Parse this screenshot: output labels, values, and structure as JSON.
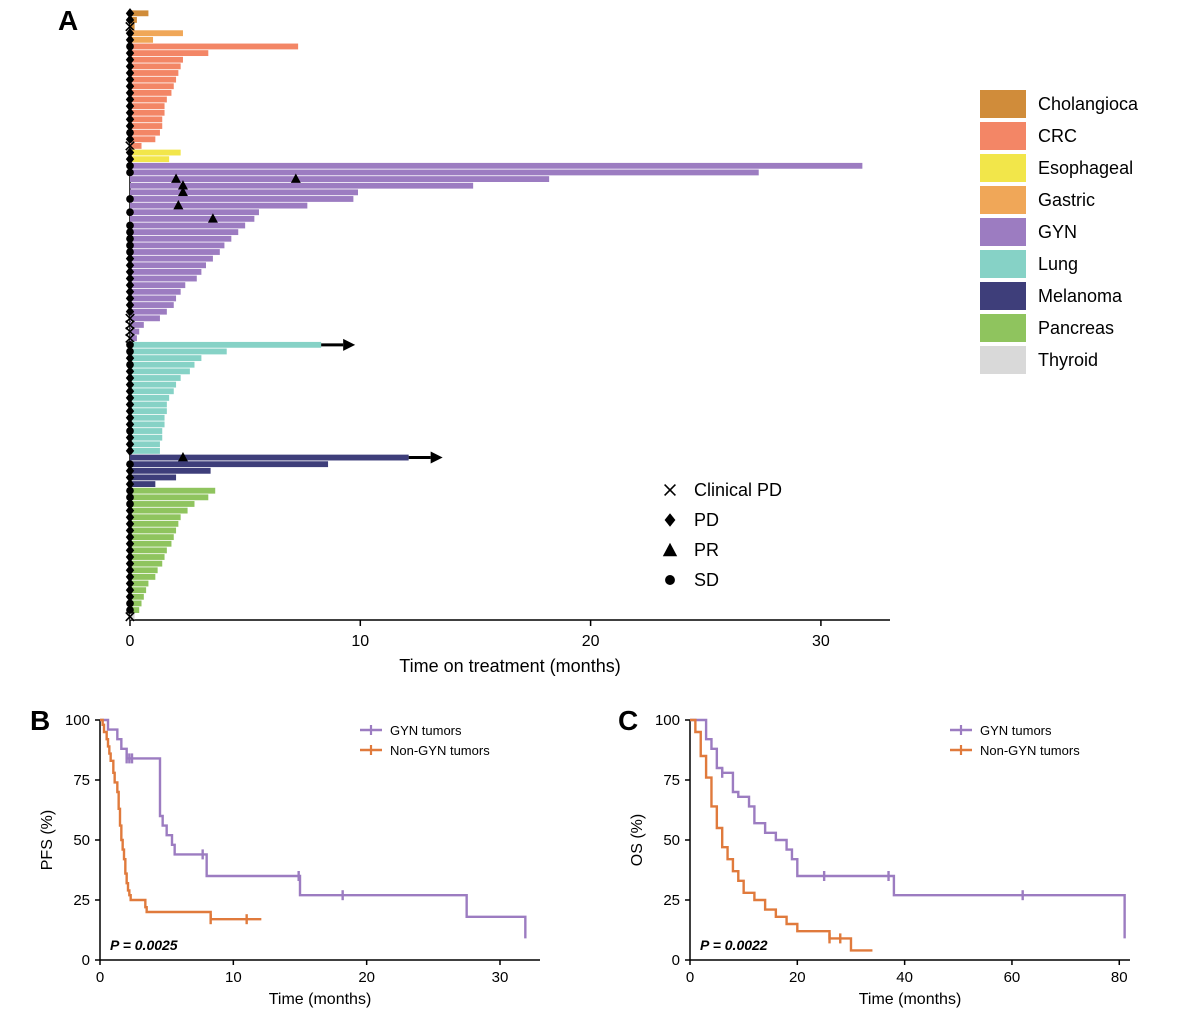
{
  "palette": {
    "Cholangioca": "#d08c3a",
    "CRC": "#f38666",
    "Esophageal": "#f2e64a",
    "Gastric": "#f0a758",
    "GYN": "#9c7cc1",
    "Lung": "#86d2c6",
    "Melanoma": "#3e3e7a",
    "Pancreas": "#8fc45e",
    "Thyroid": "#d9d9d9"
  },
  "panelA": {
    "label": "A",
    "xlabel": "Time on treatment (months)",
    "xlim": [
      0,
      33
    ],
    "xticks": [
      0,
      10,
      20,
      30
    ],
    "bar_gap": 0.12,
    "label_fontsize": 18,
    "tick_fontsize": 16,
    "panel_label_fontsize": 28,
    "axis_color": "#000000",
    "bars": [
      {
        "v": 0.8,
        "g": "Cholangioca",
        "m": "pd"
      },
      {
        "v": 0.3,
        "g": "Cholangioca",
        "m": "pd"
      },
      {
        "v": 0.2,
        "g": "Cholangioca",
        "m": "x"
      },
      {
        "v": 2.3,
        "g": "Gastric",
        "m": "pd"
      },
      {
        "v": 1.0,
        "g": "Gastric",
        "m": "pd"
      },
      {
        "v": 7.3,
        "g": "CRC",
        "m": "sd"
      },
      {
        "v": 3.4,
        "g": "CRC",
        "m": "pd"
      },
      {
        "v": 2.3,
        "g": "CRC",
        "m": "pd"
      },
      {
        "v": 2.2,
        "g": "CRC",
        "m": "pd"
      },
      {
        "v": 2.1,
        "g": "CRC",
        "m": "pd"
      },
      {
        "v": 2.0,
        "g": "CRC",
        "m": "pd"
      },
      {
        "v": 1.9,
        "g": "CRC",
        "m": "pd"
      },
      {
        "v": 1.8,
        "g": "CRC",
        "m": "pd"
      },
      {
        "v": 1.6,
        "g": "CRC",
        "m": "pd"
      },
      {
        "v": 1.5,
        "g": "CRC",
        "m": "pd"
      },
      {
        "v": 1.5,
        "g": "CRC",
        "m": "pd"
      },
      {
        "v": 1.4,
        "g": "CRC",
        "m": "pd"
      },
      {
        "v": 1.4,
        "g": "CRC",
        "m": "pd"
      },
      {
        "v": 1.3,
        "g": "CRC",
        "m": "sd"
      },
      {
        "v": 1.1,
        "g": "CRC",
        "m": "pd"
      },
      {
        "v": 0.5,
        "g": "CRC",
        "m": "x"
      },
      {
        "v": 2.2,
        "g": "Esophageal",
        "m": "pd"
      },
      {
        "v": 1.7,
        "g": "Esophageal",
        "m": "pd"
      },
      {
        "v": 31.8,
        "g": "GYN",
        "m": "sd"
      },
      {
        "v": 27.3,
        "g": "GYN",
        "m": "sd"
      },
      {
        "v": 18.2,
        "g": "GYN",
        "m": "pr",
        "pr_at": [
          2.0,
          7.2
        ]
      },
      {
        "v": 14.9,
        "g": "GYN",
        "m": "pr",
        "pr_at": [
          2.3
        ]
      },
      {
        "v": 9.9,
        "g": "GYN",
        "m": "pr",
        "pr_at": [
          2.3
        ]
      },
      {
        "v": 9.7,
        "g": "GYN",
        "m": "sd"
      },
      {
        "v": 7.7,
        "g": "GYN",
        "m": "pr",
        "pr_at": [
          2.1
        ]
      },
      {
        "v": 5.6,
        "g": "GYN",
        "m": "sd"
      },
      {
        "v": 5.4,
        "g": "GYN",
        "m": "pr",
        "pr_at": [
          3.6
        ]
      },
      {
        "v": 5.0,
        "g": "GYN",
        "m": "sd"
      },
      {
        "v": 4.7,
        "g": "GYN",
        "m": "sd"
      },
      {
        "v": 4.4,
        "g": "GYN",
        "m": "sd"
      },
      {
        "v": 4.1,
        "g": "GYN",
        "m": "sd"
      },
      {
        "v": 3.9,
        "g": "GYN",
        "m": "sd"
      },
      {
        "v": 3.6,
        "g": "GYN",
        "m": "pd"
      },
      {
        "v": 3.3,
        "g": "GYN",
        "m": "pd"
      },
      {
        "v": 3.1,
        "g": "GYN",
        "m": "pd"
      },
      {
        "v": 2.9,
        "g": "GYN",
        "m": "pd"
      },
      {
        "v": 2.4,
        "g": "GYN",
        "m": "pd"
      },
      {
        "v": 2.2,
        "g": "GYN",
        "m": "pd"
      },
      {
        "v": 2.0,
        "g": "GYN",
        "m": "pd"
      },
      {
        "v": 1.9,
        "g": "GYN",
        "m": "pd"
      },
      {
        "v": 1.6,
        "g": "GYN",
        "m": "pd"
      },
      {
        "v": 1.3,
        "g": "GYN",
        "m": "x"
      },
      {
        "v": 0.6,
        "g": "GYN",
        "m": "x"
      },
      {
        "v": 0.4,
        "g": "GYN",
        "m": "x"
      },
      {
        "v": 0.3,
        "g": "GYN",
        "m": "x"
      },
      {
        "v": 8.3,
        "g": "Lung",
        "m": "sd",
        "arrow": true
      },
      {
        "v": 4.2,
        "g": "Lung",
        "m": "sd"
      },
      {
        "v": 3.1,
        "g": "Lung",
        "m": "pd"
      },
      {
        "v": 2.8,
        "g": "Lung",
        "m": "sd"
      },
      {
        "v": 2.6,
        "g": "Lung",
        "m": "pd"
      },
      {
        "v": 2.2,
        "g": "Lung",
        "m": "pd"
      },
      {
        "v": 2.0,
        "g": "Lung",
        "m": "pd"
      },
      {
        "v": 1.9,
        "g": "Lung",
        "m": "pd"
      },
      {
        "v": 1.7,
        "g": "Lung",
        "m": "pd"
      },
      {
        "v": 1.6,
        "g": "Lung",
        "m": "pd"
      },
      {
        "v": 1.6,
        "g": "Lung",
        "m": "pd"
      },
      {
        "v": 1.5,
        "g": "Lung",
        "m": "pd"
      },
      {
        "v": 1.5,
        "g": "Lung",
        "m": "pd"
      },
      {
        "v": 1.4,
        "g": "Lung",
        "m": "sd"
      },
      {
        "v": 1.4,
        "g": "Lung",
        "m": "pd"
      },
      {
        "v": 1.3,
        "g": "Lung",
        "m": "pd"
      },
      {
        "v": 1.3,
        "g": "Lung",
        "m": "pd"
      },
      {
        "v": 12.1,
        "g": "Melanoma",
        "m": "pr",
        "pr_at": [
          2.3
        ],
        "arrow": true
      },
      {
        "v": 8.6,
        "g": "Melanoma",
        "m": "sd"
      },
      {
        "v": 3.5,
        "g": "Melanoma",
        "m": "pd"
      },
      {
        "v": 2.0,
        "g": "Melanoma",
        "m": "pd"
      },
      {
        "v": 1.1,
        "g": "Melanoma",
        "m": "pd"
      },
      {
        "v": 3.7,
        "g": "Pancreas",
        "m": "sd"
      },
      {
        "v": 3.4,
        "g": "Pancreas",
        "m": "sd"
      },
      {
        "v": 2.8,
        "g": "Pancreas",
        "m": "sd"
      },
      {
        "v": 2.5,
        "g": "Pancreas",
        "m": "pd"
      },
      {
        "v": 2.2,
        "g": "Pancreas",
        "m": "pd"
      },
      {
        "v": 2.1,
        "g": "Pancreas",
        "m": "pd"
      },
      {
        "v": 2.0,
        "g": "Pancreas",
        "m": "pd"
      },
      {
        "v": 1.9,
        "g": "Pancreas",
        "m": "pd"
      },
      {
        "v": 1.8,
        "g": "Pancreas",
        "m": "pd"
      },
      {
        "v": 1.6,
        "g": "Pancreas",
        "m": "pd"
      },
      {
        "v": 1.5,
        "g": "Pancreas",
        "m": "pd"
      },
      {
        "v": 1.4,
        "g": "Pancreas",
        "m": "pd"
      },
      {
        "v": 1.2,
        "g": "Pancreas",
        "m": "pd"
      },
      {
        "v": 1.1,
        "g": "Pancreas",
        "m": "pd"
      },
      {
        "v": 0.8,
        "g": "Pancreas",
        "m": "pd"
      },
      {
        "v": 0.7,
        "g": "Pancreas",
        "m": "pd"
      },
      {
        "v": 0.6,
        "g": "Pancreas",
        "m": "pd"
      },
      {
        "v": 0.5,
        "g": "Pancreas",
        "m": "sd"
      },
      {
        "v": 0.4,
        "g": "Pancreas",
        "m": "sd"
      },
      {
        "v": 0.2,
        "g": "Thyroid",
        "m": "x"
      }
    ],
    "marker_legend": [
      {
        "key": "x",
        "label": "Clinical PD"
      },
      {
        "key": "pd",
        "label": "PD"
      },
      {
        "key": "pr",
        "label": "PR"
      },
      {
        "key": "sd",
        "label": "SD"
      }
    ],
    "group_legend_title": null,
    "group_order": [
      "Cholangioca",
      "CRC",
      "Esophageal",
      "Gastric",
      "GYN",
      "Lung",
      "Melanoma",
      "Pancreas",
      "Thyroid"
    ]
  },
  "panelB": {
    "label": "B",
    "ylabel": "PFS (%)",
    "xlabel": "Time (months)",
    "xlim": [
      0,
      33
    ],
    "xticks": [
      0,
      10,
      20,
      30
    ],
    "ylim": [
      0,
      100
    ],
    "yticks": [
      0,
      25,
      50,
      75,
      100
    ],
    "p_text": "P = 0.0025",
    "series": [
      {
        "name": "GYN tumors",
        "color": "#9c7cc1",
        "step": [
          [
            0,
            100
          ],
          [
            0.4,
            100
          ],
          [
            0.6,
            96
          ],
          [
            1.3,
            92
          ],
          [
            1.6,
            88
          ],
          [
            2.0,
            84
          ],
          [
            2.0,
            84
          ],
          [
            2.2,
            84
          ],
          [
            2.4,
            84
          ],
          [
            4.5,
            84
          ],
          [
            4.5,
            60
          ],
          [
            4.7,
            56
          ],
          [
            5.0,
            52
          ],
          [
            5.4,
            48
          ],
          [
            5.6,
            44
          ],
          [
            7.7,
            44
          ],
          [
            8.0,
            35
          ],
          [
            9.7,
            35
          ],
          [
            14.9,
            35
          ],
          [
            15.0,
            27
          ],
          [
            18.2,
            27
          ],
          [
            27.3,
            27
          ],
          [
            27.5,
            18
          ],
          [
            31.8,
            18
          ],
          [
            31.9,
            9
          ]
        ],
        "censors": [
          [
            2.0,
            84
          ],
          [
            2.2,
            84
          ],
          [
            2.4,
            84
          ],
          [
            7.7,
            44
          ],
          [
            14.9,
            35
          ],
          [
            18.2,
            27
          ]
        ]
      },
      {
        "name": "Non-GYN tumors",
        "color": "#e07a3c",
        "step": [
          [
            0,
            100
          ],
          [
            0.2,
            98
          ],
          [
            0.3,
            95
          ],
          [
            0.5,
            92
          ],
          [
            0.6,
            89
          ],
          [
            0.7,
            86
          ],
          [
            0.8,
            83
          ],
          [
            1.0,
            78
          ],
          [
            1.1,
            74
          ],
          [
            1.3,
            70
          ],
          [
            1.4,
            63
          ],
          [
            1.5,
            56
          ],
          [
            1.6,
            50
          ],
          [
            1.7,
            46
          ],
          [
            1.8,
            42
          ],
          [
            1.9,
            36
          ],
          [
            2.0,
            32
          ],
          [
            2.1,
            29
          ],
          [
            2.2,
            27
          ],
          [
            2.3,
            25
          ],
          [
            2.5,
            25
          ],
          [
            2.6,
            25
          ],
          [
            2.8,
            25
          ],
          [
            3.1,
            25
          ],
          [
            3.4,
            22
          ],
          [
            3.5,
            20
          ],
          [
            4.2,
            20
          ],
          [
            7.3,
            20
          ],
          [
            8.3,
            17
          ],
          [
            11.0,
            17
          ],
          [
            12.1,
            17
          ]
        ],
        "censors": [
          [
            8.3,
            17
          ],
          [
            11.0,
            17
          ]
        ]
      }
    ]
  },
  "panelC": {
    "label": "C",
    "ylabel": "OS (%)",
    "xlabel": "Time (months)",
    "xlim": [
      0,
      82
    ],
    "xticks": [
      0,
      20,
      40,
      60,
      80
    ],
    "ylim": [
      0,
      100
    ],
    "yticks": [
      0,
      25,
      50,
      75,
      100
    ],
    "p_text": "P = 0.0022",
    "series": [
      {
        "name": "GYN tumors",
        "color": "#9c7cc1",
        "step": [
          [
            0,
            100
          ],
          [
            3,
            92
          ],
          [
            4,
            88
          ],
          [
            5,
            80
          ],
          [
            6,
            78
          ],
          [
            8,
            70
          ],
          [
            9,
            68
          ],
          [
            11,
            64
          ],
          [
            12,
            57
          ],
          [
            14,
            53
          ],
          [
            16,
            50
          ],
          [
            18,
            46
          ],
          [
            19,
            42
          ],
          [
            20,
            35
          ],
          [
            25,
            35
          ],
          [
            37,
            35
          ],
          [
            38,
            27
          ],
          [
            62,
            27
          ],
          [
            80,
            27
          ],
          [
            81,
            9
          ]
        ],
        "censors": [
          [
            6,
            78
          ],
          [
            25,
            35
          ],
          [
            37,
            35
          ],
          [
            62,
            27
          ]
        ]
      },
      {
        "name": "Non-GYN tumors",
        "color": "#e07a3c",
        "step": [
          [
            0,
            100
          ],
          [
            1,
            95
          ],
          [
            2,
            85
          ],
          [
            3,
            76
          ],
          [
            4,
            64
          ],
          [
            5,
            55
          ],
          [
            6,
            47
          ],
          [
            7,
            42
          ],
          [
            8,
            37
          ],
          [
            9,
            33
          ],
          [
            10,
            28
          ],
          [
            12,
            25
          ],
          [
            14,
            21
          ],
          [
            16,
            18
          ],
          [
            18,
            15
          ],
          [
            20,
            12
          ],
          [
            23,
            12
          ],
          [
            26,
            9
          ],
          [
            28,
            9
          ],
          [
            30,
            4
          ],
          [
            34,
            4
          ]
        ],
        "censors": [
          [
            26,
            9
          ],
          [
            28,
            9
          ]
        ]
      }
    ]
  },
  "fonts": {
    "panel_label_weight": "700"
  }
}
